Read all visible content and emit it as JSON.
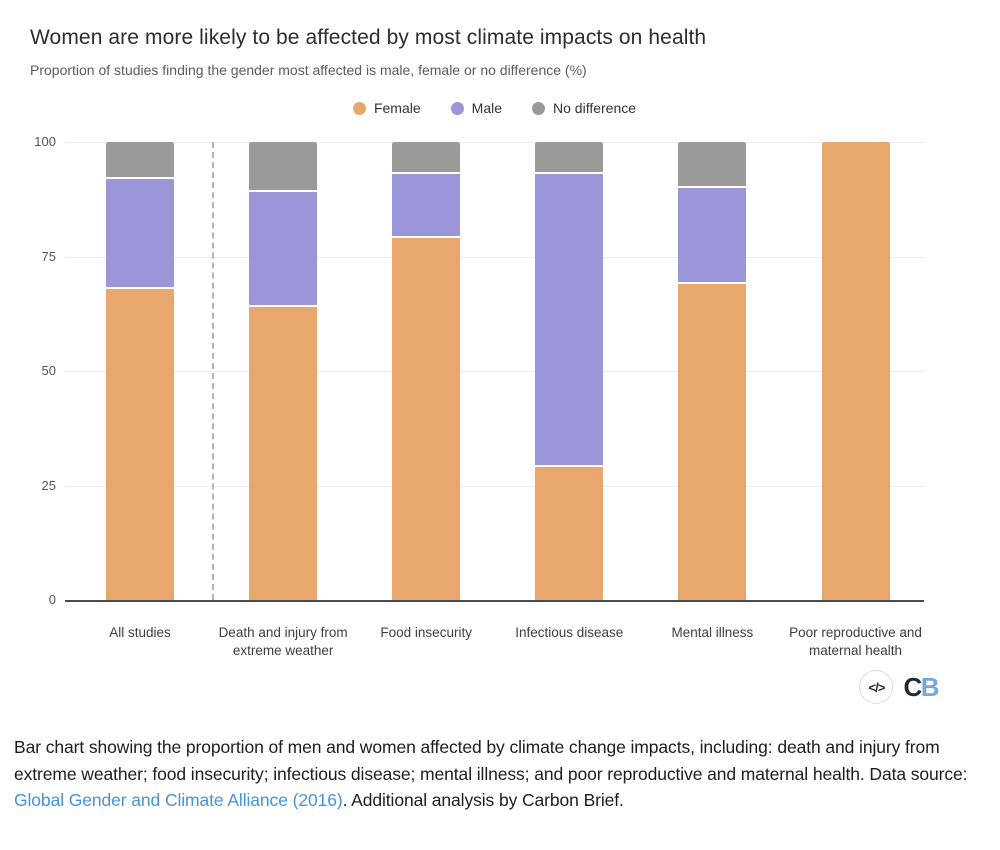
{
  "chart_data": {
    "type": "bar",
    "stacked": true,
    "title": "Women are more likely to be affected by most climate impacts on health",
    "subtitle": "Proportion of studies finding the gender most affected is male, female or no difference (%)",
    "categories": [
      "All studies",
      "Death and injury from extreme weather",
      "Food insecurity",
      "Infectious disease",
      "Mental illness",
      "Poor reproductive and maternal health"
    ],
    "series": [
      {
        "name": "Female",
        "color": "#e9a76e",
        "values": [
          68,
          64,
          79,
          29,
          69,
          100
        ]
      },
      {
        "name": "Male",
        "color": "#9b96d7",
        "values": [
          24,
          25,
          14,
          64,
          21,
          0
        ]
      },
      {
        "name": "No difference",
        "color": "#9a9a9a",
        "values": [
          8,
          11,
          7,
          7,
          10,
          0
        ]
      }
    ],
    "xlabel": "",
    "ylabel": "",
    "ylim": [
      0,
      100
    ],
    "yticks": [
      0,
      25,
      50,
      75,
      100
    ],
    "grid": true,
    "legend_position": "top",
    "separator_after_category_index": 0,
    "axis_color": "#4c4c4c",
    "gridline_color": "#ededed",
    "separator_color": "#b3b3b3"
  },
  "footer": {
    "embed_icon_label": "</>",
    "logo_letter_c": "C",
    "logo_letter_b": "B"
  },
  "caption": {
    "text_before_link": "Bar chart showing the proportion of men and women affected by climate change impacts, including: death and injury from extreme weather; food insecurity; infectious disease; mental illness; and poor reproductive and maternal health. Data source: ",
    "link_text": "Global Gender and Climate Alliance (2016)",
    "text_after_link": ". Additional analysis by Carbon Brief.",
    "link_color": "#4793d9"
  }
}
